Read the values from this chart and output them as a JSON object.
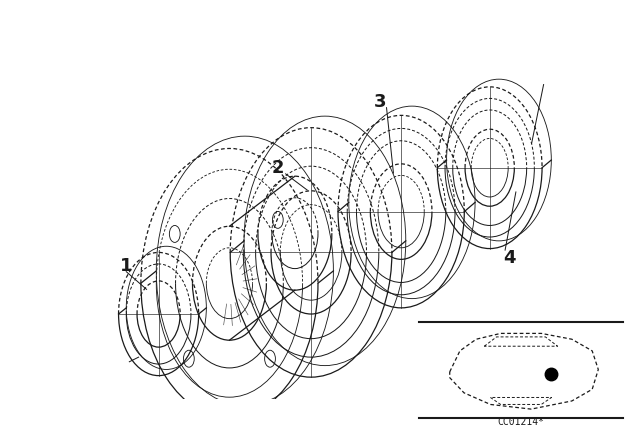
{
  "background_color": "#ffffff",
  "line_color": "#1a1a1a",
  "line_width": 0.9,
  "fig_w": 6.4,
  "fig_h": 4.48,
  "dpi": 100,
  "car_label": "CC01214*"
}
